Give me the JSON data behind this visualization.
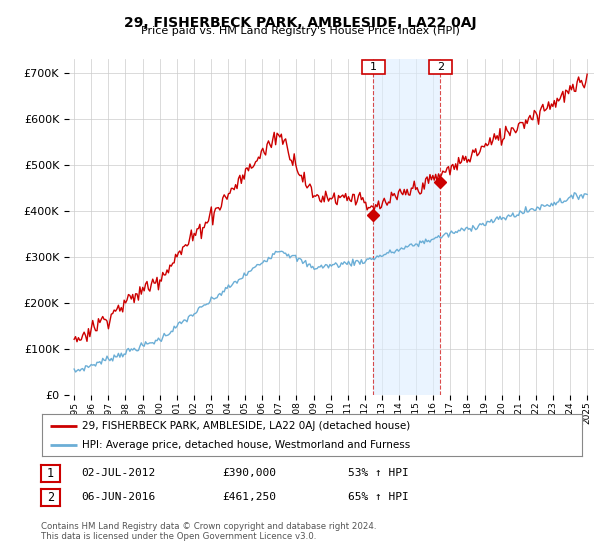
{
  "title1": "29, FISHERBECK PARK, AMBLESIDE, LA22 0AJ",
  "title2": "Price paid vs. HM Land Registry's House Price Index (HPI)",
  "ytick_values": [
    0,
    100000,
    200000,
    300000,
    400000,
    500000,
    600000,
    700000
  ],
  "ylim": [
    0,
    730000
  ],
  "xlim_start": 1994.7,
  "xlim_end": 2025.4,
  "line1_color": "#cc0000",
  "line2_color": "#6baed6",
  "shade_color": "#ddeeff",
  "sale1_year": 2012.5,
  "sale1_price": 390000,
  "sale2_year": 2016.42,
  "sale2_price": 461250,
  "legend_label1": "29, FISHERBECK PARK, AMBLESIDE, LA22 0AJ (detached house)",
  "legend_label2": "HPI: Average price, detached house, Westmorland and Furness",
  "table_row1": [
    "1",
    "02-JUL-2012",
    "£390,000",
    "53% ↑ HPI"
  ],
  "table_row2": [
    "2",
    "06-JUN-2016",
    "£461,250",
    "65% ↑ HPI"
  ],
  "footer": "Contains HM Land Registry data © Crown copyright and database right 2024.\nThis data is licensed under the Open Government Licence v3.0.",
  "grid_color": "#cccccc",
  "background_color": "#ffffff"
}
